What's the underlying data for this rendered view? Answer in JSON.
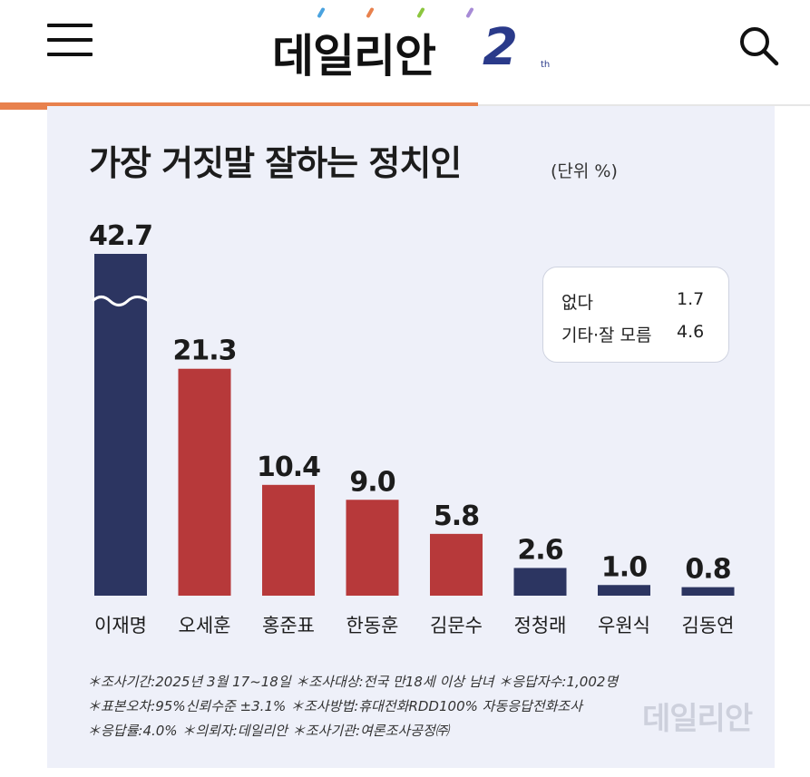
{
  "header": {
    "logo_text": "데일리안",
    "logo_number": "2",
    "logo_suffix": "th"
  },
  "reading_progress": 0.59,
  "chart_data": {
    "type": "bar",
    "title": "가장 거짓말 잘하는 정치인",
    "unit": "(단위 %)",
    "categories": [
      "이재명",
      "오세훈",
      "홍준표",
      "한동훈",
      "김문수",
      "정청래",
      "우원식",
      "김동연"
    ],
    "values": [
      42.7,
      21.3,
      10.4,
      9.0,
      5.8,
      2.6,
      1.0,
      0.8
    ],
    "value_labels": [
      "42.7",
      "21.3",
      "10.4",
      "9.0",
      "5.8",
      "2.6",
      "1.0",
      "0.8"
    ],
    "bar_colors": [
      "#2c3561",
      "#b7393a",
      "#b7393a",
      "#b7393a",
      "#b7393a",
      "#2c3561",
      "#2c3561",
      "#2c3561"
    ],
    "axis_break_on_first_bar": true,
    "legend_box": [
      {
        "label": "없다",
        "value": "1.7"
      },
      {
        "label": "기타·잘 모름",
        "value": "4.6"
      }
    ]
  },
  "notes": [
    "＊조사기간:2025년 3월 17~18일  ＊조사대상:전국 만18세 이상 남녀  ＊응답자수:1,002명",
    "＊표본오차:95%신뢰수준 ±3.1%  ＊조사방법:휴대전화RDD100% 자동응답전화조사",
    "＊응답률:4.0%  ＊의뢰자:데일리안  ＊조사기관:여론조사공정㈜"
  ],
  "watermark": "데일리안"
}
